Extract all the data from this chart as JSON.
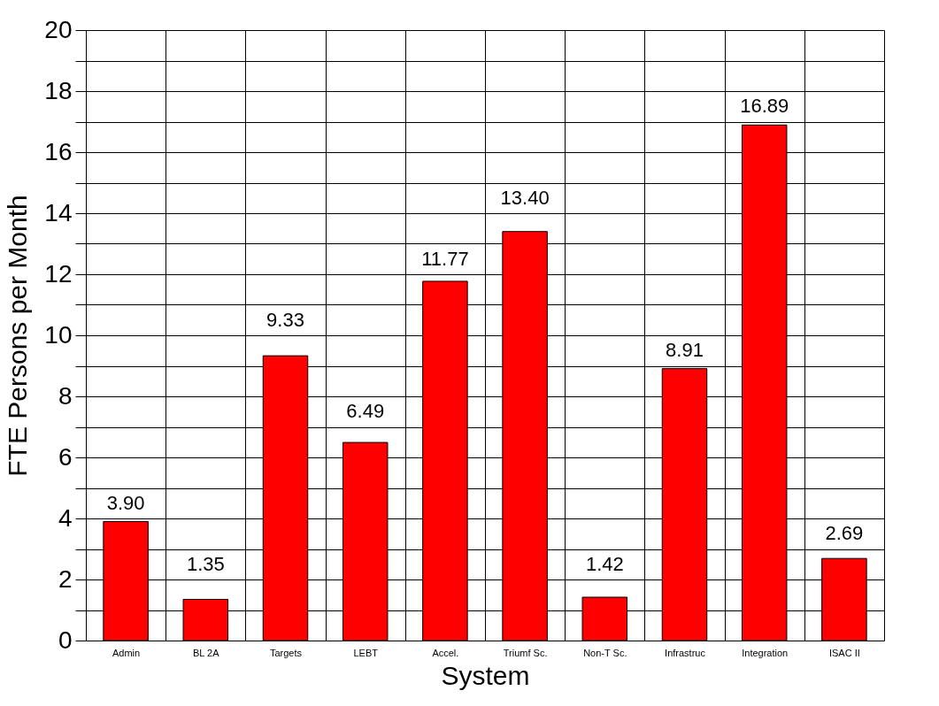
{
  "chart_data": {
    "type": "bar",
    "xlabel": "System",
    "ylabel": "FTE Persons per Month",
    "categories": [
      "Admin",
      "BL 2A",
      "Targets",
      "LEBT",
      "Accel.",
      "Triumf Sc.",
      "Non-T Sc.",
      "Infrastruc",
      "Integration",
      "ISAC II"
    ],
    "values": [
      3.9,
      1.35,
      9.33,
      6.49,
      11.77,
      13.4,
      1.42,
      8.91,
      16.89,
      2.69
    ],
    "value_labels": [
      "3.90",
      "1.35",
      "9.33",
      "6.49",
      "11.77",
      "13.40",
      "1.42",
      "8.91",
      "16.89",
      "2.69"
    ],
    "color": "#ff0000",
    "ylim": [
      0,
      20
    ],
    "yticks": [
      0,
      {
        "value": 1,
        "label": null
      },
      2,
      {
        "value": 3,
        "label": null
      },
      4,
      {
        "value": 5,
        "label": null
      },
      6,
      {
        "value": 7,
        "label": null
      },
      8,
      {
        "value": 9,
        "label": null
      },
      10,
      {
        "value": 11,
        "label": null
      },
      12,
      {
        "value": 13,
        "label": null
      },
      14,
      {
        "value": 15,
        "label": null
      },
      16,
      {
        "value": 17,
        "label": null
      },
      18,
      {
        "value": 19,
        "label": null
      },
      20
    ],
    "grid": true
  }
}
